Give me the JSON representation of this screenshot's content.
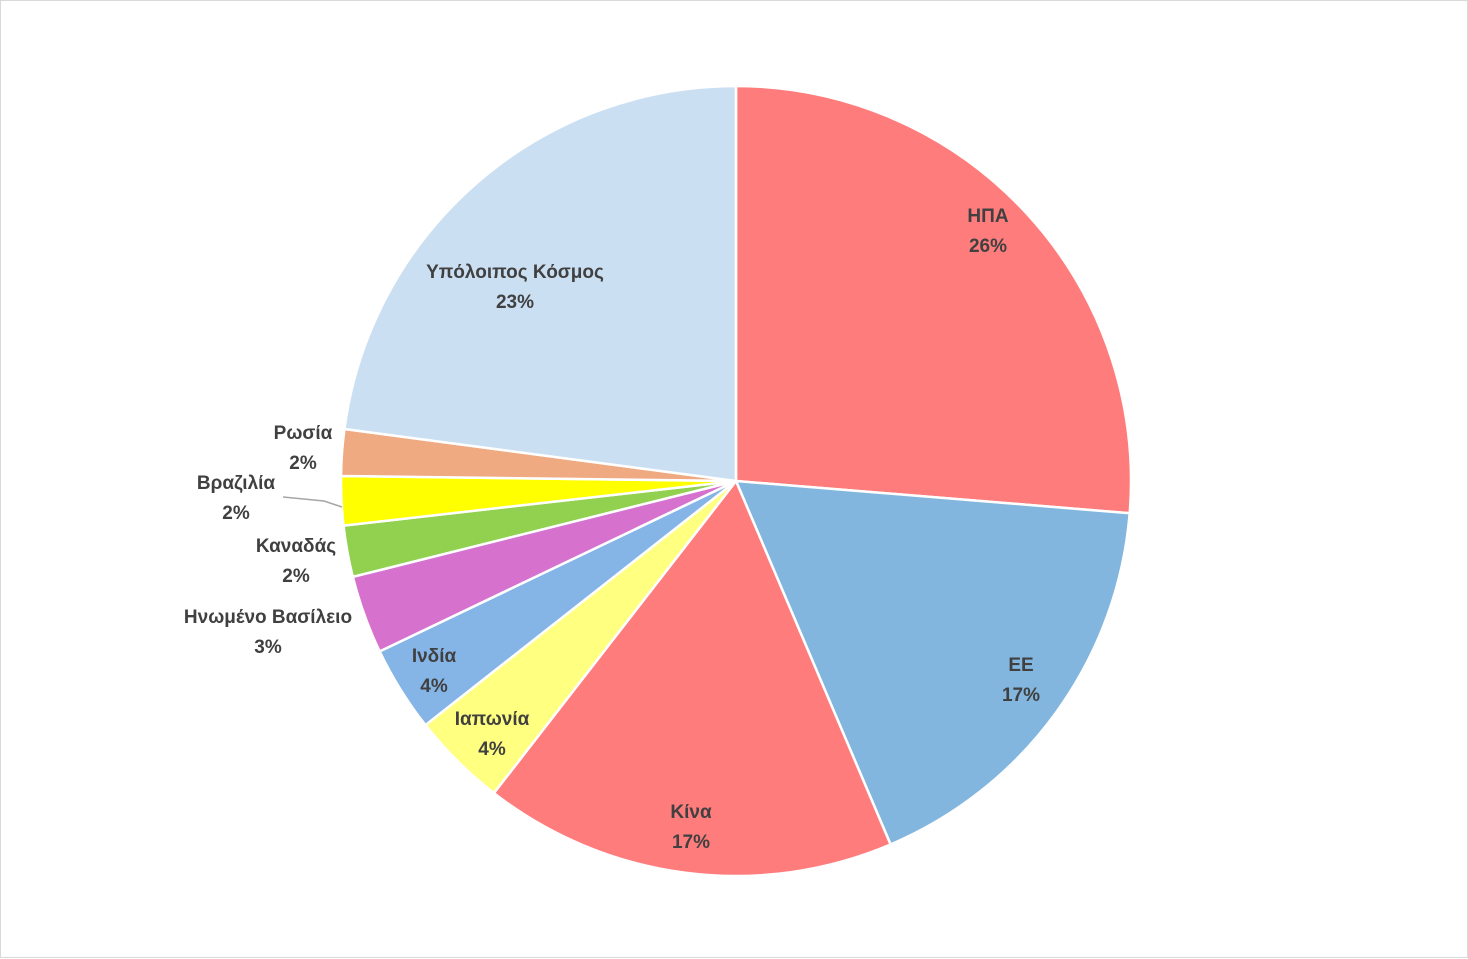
{
  "chart_data": {
    "type": "pie",
    "title": "",
    "start_angle_deg": 0,
    "direction": "clockwise",
    "slice_border_color": "#ffffff",
    "label_color": "#404040",
    "leader_line_color": "#a6a6a6",
    "slices": [
      {
        "label": "ΗΠΑ",
        "percent_label": "26%",
        "value": 26.3,
        "color": "#ff7c7c"
      },
      {
        "label": "ΕΕ",
        "percent_label": "17%",
        "value": 17.3,
        "color": "#82b6de"
      },
      {
        "label": "Κίνα",
        "percent_label": "17%",
        "value": 16.9,
        "color": "#ff7c7c"
      },
      {
        "label": "Ιαπωνία",
        "percent_label": "4%",
        "value": 3.9,
        "color": "#ffff80"
      },
      {
        "label": "Ινδία",
        "percent_label": "4%",
        "value": 3.5,
        "color": "#85b4e6"
      },
      {
        "label": "Ηνωμένο Βασίλειο",
        "percent_label": "3%",
        "value": 3.2,
        "color": "#d672ce"
      },
      {
        "label": "Καναδάς",
        "percent_label": "2%",
        "value": 2.1,
        "color": "#92d050"
      },
      {
        "label": "Βραζιλία",
        "percent_label": "2%",
        "value": 2.0,
        "color": "#ffff00"
      },
      {
        "label": "Ρωσία",
        "percent_label": "2%",
        "value": 1.9,
        "color": "#f0aa82"
      },
      {
        "label": "Υπόλοιπος Κόσμος",
        "percent_label": "23%",
        "value": 22.9,
        "color": "#cbdff3"
      }
    ]
  }
}
